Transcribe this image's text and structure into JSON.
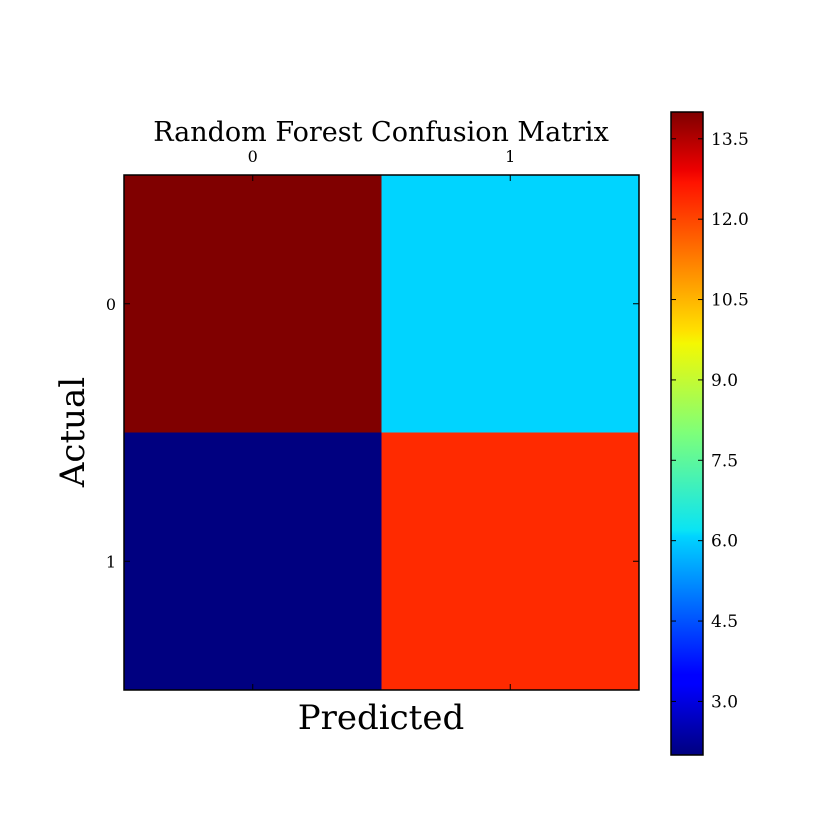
{
  "chart_data": {
    "type": "heatmap",
    "title": "Random Forest Confusion Matrix",
    "xlabel": "Predicted",
    "ylabel": "Actual",
    "x_categories": [
      "0",
      "1"
    ],
    "y_categories": [
      "0",
      "1"
    ],
    "values": [
      [
        14,
        6
      ],
      [
        2,
        12
      ]
    ],
    "colormap": "jet",
    "color_range": [
      2,
      14
    ],
    "colorbar": {
      "ticks": [
        3.0,
        4.5,
        6.0,
        7.5,
        9.0,
        10.5,
        12.0,
        13.5
      ],
      "tick_labels": [
        "3.0",
        "4.5",
        "6.0",
        "7.5",
        "9.0",
        "10.5",
        "12.0",
        "13.5"
      ]
    },
    "x_tick_position": "top",
    "grid": false
  }
}
